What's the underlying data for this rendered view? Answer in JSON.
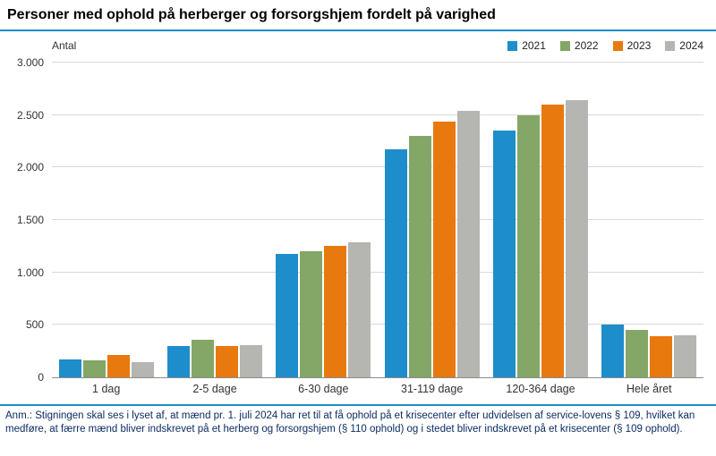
{
  "title": "Personer med ophold på herberger og forsorgshjem fordelt på varighed",
  "footnote": "Anm.: Stigningen skal ses i lyset af, at mænd pr. 1. juli 2024 har ret til at få ophold på et krisecenter efter udvidelsen af service-lovens § 109, hvilket kan medføre, at færre mænd bliver indskrevet på et herberg og forsorgshjem (§ 110 ophold) og i stedet bliver indskrevet på et krisecenter (§ 109 ophold).",
  "accent_color": "#1E8DCB",
  "chart_data": {
    "type": "bar",
    "title": "Personer med ophold på herberger og forsorgshjem fordelt på varighed",
    "ylabel": "Antal",
    "xlabel": "",
    "categories": [
      "1 dag",
      "2-5 dage",
      "6-30 dage",
      "31-119 dage",
      "120-364 dage",
      "Hele året"
    ],
    "series": [
      {
        "name": "2021",
        "color": "#1E8DCB",
        "values": [
          170,
          300,
          1175,
          2170,
          2350,
          500
        ]
      },
      {
        "name": "2022",
        "color": "#84A667",
        "values": [
          160,
          355,
          1200,
          2300,
          2500,
          450
        ]
      },
      {
        "name": "2023",
        "color": "#E8790F",
        "values": [
          210,
          295,
          1250,
          2440,
          2600,
          395
        ]
      },
      {
        "name": "2024",
        "color": "#B5B5B1",
        "values": [
          145,
          305,
          1290,
          2540,
          2640,
          400
        ]
      }
    ],
    "ylim": [
      0,
      3000
    ],
    "yticks": [
      0,
      500,
      1000,
      1500,
      2000,
      2500,
      3000
    ],
    "ytick_labels": [
      "0",
      "500",
      "1.000",
      "1.500",
      "2.000",
      "2.500",
      "3.000"
    ],
    "grid": true,
    "legend_position": "top-right"
  }
}
